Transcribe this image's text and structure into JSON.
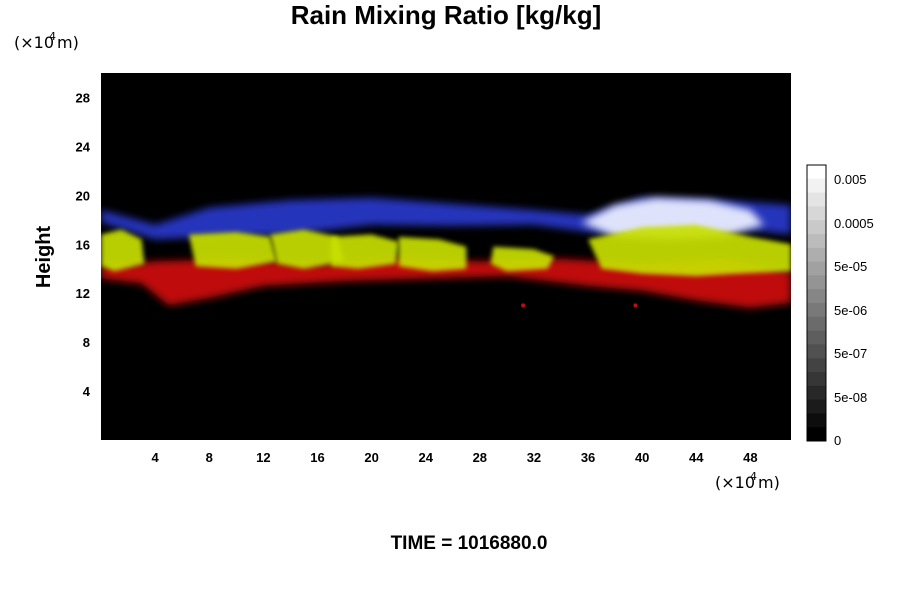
{
  "chart_data": {
    "type": "heatmap",
    "title": "Rain Mixing Ratio [kg/kg]",
    "ylabel": "Height",
    "x_unit": {
      "prefix": "(×10",
      "exp": "4",
      "suffix": " m)"
    },
    "y_unit": {
      "prefix": "(×10",
      "exp": "4",
      "suffix": " m)"
    },
    "xlim": [
      0,
      51
    ],
    "ylim": [
      0,
      30
    ],
    "x_ticks": [
      "4",
      "8",
      "12",
      "16",
      "20",
      "24",
      "28",
      "32",
      "36",
      "40",
      "44",
      "48"
    ],
    "y_ticks": [
      "4",
      "8",
      "12",
      "16",
      "20",
      "24",
      "28"
    ],
    "grid": false,
    "background_color": "#000000",
    "time_label": "TIME = 1016880.0",
    "colorbar": {
      "labels": [
        "0.005",
        "0.0005",
        "5e-05",
        "5e-06",
        "5e-07",
        "5e-08",
        "0"
      ],
      "position": "right",
      "levels": 20
    },
    "layers": [
      {
        "name": "blue",
        "color": "#2a3ad0",
        "height_range": [
          16,
          20
        ]
      },
      {
        "name": "white",
        "color": "#e8ecff",
        "height_range": [
          16.5,
          20
        ]
      },
      {
        "name": "yellow",
        "color": "#c8e000",
        "height_range": [
          13.5,
          17
        ]
      },
      {
        "name": "red",
        "color": "#d01010",
        "height_range": [
          11,
          14
        ]
      }
    ]
  }
}
